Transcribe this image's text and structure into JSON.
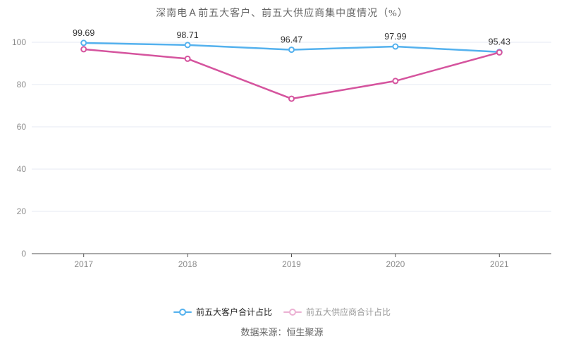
{
  "chart_data": {
    "type": "line",
    "title": "深南电Ａ前五大客户、前五大供应商集中度情况（%）",
    "categories": [
      "2017",
      "2018",
      "2019",
      "2020",
      "2021"
    ],
    "series": [
      {
        "name": "前五大客户合计占比",
        "color": "#54b1ee",
        "values": [
          99.69,
          98.71,
          96.47,
          97.99,
          95.43
        ],
        "show_labels": true
      },
      {
        "name": "前五大供应商合计占比",
        "color": "#d5549e",
        "values": [
          96.7,
          92.2,
          73.3,
          81.7,
          95.2
        ],
        "show_labels": false
      }
    ],
    "ylim": [
      0,
      100
    ],
    "y_ticks": [
      0,
      20,
      40,
      60,
      80,
      100
    ],
    "xlabel": "",
    "ylabel": "",
    "grid": true,
    "legend_position": "bottom",
    "colors": {
      "grid_line": "#e6e9f3",
      "axis_line": "#555555",
      "tick_label": "#8c8c8c",
      "value_label": "#333333",
      "background": "#ffffff"
    }
  },
  "legend": {
    "items": [
      {
        "label": "前五大客户合计占比",
        "color": "#54b1ee",
        "muted": false
      },
      {
        "label": "前五大供应商合计占比",
        "color": "#d5549e",
        "muted": true
      }
    ]
  },
  "footer": {
    "source_text": "数据来源：恒生聚源"
  }
}
